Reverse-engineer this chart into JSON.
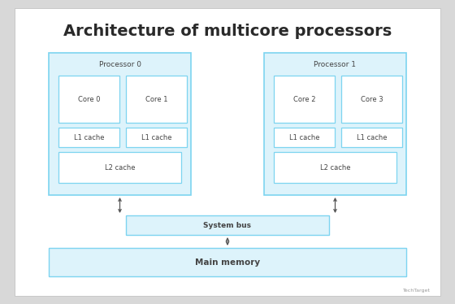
{
  "title": "Architecture of multicore processors",
  "title_fontsize": 14,
  "title_fontweight": "bold",
  "title_color": "#2a2a2a",
  "bg_color": "#d8d8d8",
  "card_bg": "#ffffff",
  "box_fill": "#ddf3fb",
  "box_edge": "#7dd4f0",
  "inner_fill": "#ffffff",
  "inner_edge": "#7dd4f0",
  "label_color": "#444444",
  "proc_label_fontsize": 6.5,
  "cache_label_fontsize": 6.0,
  "core_label_fontsize": 6.0,
  "sbus_label_fontsize": 6.5,
  "mem_label_fontsize": 7.5,
  "watermark": "TechTarget",
  "processors": [
    {
      "label": "Processor 0",
      "cores": [
        "Core 0",
        "Core 1"
      ],
      "l1": [
        "L1 cache",
        "L1 cache"
      ],
      "l2": "L2 cache"
    },
    {
      "label": "Processor 1",
      "cores": [
        "Core 2",
        "Core 3"
      ],
      "l1": [
        "L1 cache",
        "L1 cache"
      ],
      "l2": "L2 cache"
    }
  ],
  "system_bus_label": "System bus",
  "main_memory_label": "Main memory",
  "arrow_color": "#555555",
  "card_edge": "#bbbbbb"
}
